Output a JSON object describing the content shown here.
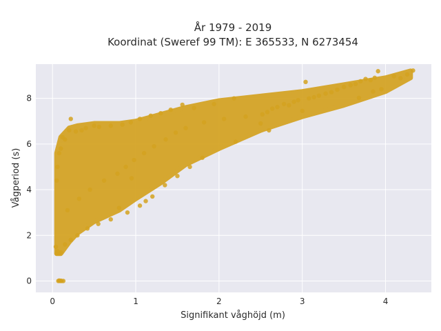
{
  "chart_data": {
    "type": "scatter",
    "title_line1": "År 1979 - 2019",
    "title_line2": "Koordinat (Sweref 99 TM): E 365533, N 6273454",
    "xlabel": "Signifikant våghöjd (m)",
    "ylabel": "Vågperiod (s)",
    "xlim": [
      -0.2,
      4.55
    ],
    "ylim": [
      -0.5,
      9.5
    ],
    "x_ticks": [
      0,
      1,
      2,
      3,
      4
    ],
    "y_ticks": [
      0,
      2,
      4,
      6,
      8
    ],
    "x_tick_labels": [
      "0",
      "1",
      "2",
      "3",
      "4"
    ],
    "y_tick_labels": [
      "0",
      "2",
      "4",
      "6",
      "8"
    ],
    "grid": true,
    "colors": {
      "marker": "#D4A220",
      "plot_bg": "#E8E8F0",
      "grid": "#ffffff"
    },
    "envelope": {
      "upper": [
        [
          0.05,
          5.6
        ],
        [
          0.1,
          6.3
        ],
        [
          0.2,
          6.7
        ],
        [
          0.3,
          6.8
        ],
        [
          0.5,
          6.9
        ],
        [
          0.8,
          6.9
        ],
        [
          1.0,
          7.0
        ],
        [
          1.3,
          7.3
        ],
        [
          1.6,
          7.6
        ],
        [
          2.0,
          7.9
        ],
        [
          2.5,
          8.1
        ],
        [
          3.0,
          8.3
        ],
        [
          3.5,
          8.6
        ],
        [
          4.0,
          8.9
        ],
        [
          4.3,
          9.2
        ]
      ],
      "lower": [
        [
          0.05,
          1.2
        ],
        [
          0.1,
          1.2
        ],
        [
          0.2,
          1.7
        ],
        [
          0.3,
          2.1
        ],
        [
          0.5,
          2.6
        ],
        [
          0.8,
          3.1
        ],
        [
          1.0,
          3.6
        ],
        [
          1.3,
          4.3
        ],
        [
          1.6,
          5.1
        ],
        [
          2.0,
          5.8
        ],
        [
          2.5,
          6.6
        ],
        [
          3.0,
          7.2
        ],
        [
          3.5,
          7.7
        ],
        [
          4.0,
          8.3
        ],
        [
          4.3,
          8.9
        ]
      ]
    },
    "points": [
      [
        4.33,
        9.22
      ],
      [
        4.26,
        9.05
      ],
      [
        4.18,
        8.88
      ],
      [
        4.1,
        8.97
      ],
      [
        3.91,
        9.19
      ],
      [
        3.87,
        8.9
      ],
      [
        3.82,
        8.8
      ],
      [
        3.76,
        8.85
      ],
      [
        3.7,
        8.75
      ],
      [
        3.64,
        8.63
      ],
      [
        3.58,
        8.58
      ],
      [
        3.5,
        8.5
      ],
      [
        3.42,
        8.38
      ],
      [
        3.35,
        8.27
      ],
      [
        3.28,
        8.21
      ],
      [
        3.2,
        8.12
      ],
      [
        3.14,
        8.05
      ],
      [
        3.08,
        8.0
      ],
      [
        3.04,
        8.72
      ],
      [
        2.95,
        7.92
      ],
      [
        2.9,
        7.85
      ],
      [
        2.84,
        7.7
      ],
      [
        2.78,
        7.75
      ],
      [
        2.7,
        7.62
      ],
      [
        2.64,
        7.55
      ],
      [
        2.58,
        7.4
      ],
      [
        2.52,
        7.3
      ],
      [
        3.0,
        7.45
      ],
      [
        2.5,
        6.9
      ],
      [
        2.32,
        7.2
      ],
      [
        3.68,
        8.02
      ],
      [
        3.85,
        8.3
      ],
      [
        3.95,
        8.4
      ],
      [
        2.18,
        8.0
      ],
      [
        2.06,
        7.1
      ],
      [
        1.94,
        7.75
      ],
      [
        1.82,
        6.95
      ],
      [
        1.7,
        7.58
      ],
      [
        1.6,
        6.7
      ],
      [
        1.56,
        7.72
      ],
      [
        1.48,
        6.5
      ],
      [
        1.42,
        7.5
      ],
      [
        1.36,
        6.2
      ],
      [
        1.3,
        7.35
      ],
      [
        1.22,
        5.9
      ],
      [
        1.18,
        7.24
      ],
      [
        1.1,
        5.6
      ],
      [
        1.05,
        7.1
      ],
      [
        0.98,
        5.3
      ],
      [
        0.94,
        6.95
      ],
      [
        0.88,
        5.0
      ],
      [
        0.84,
        6.85
      ],
      [
        0.78,
        4.7
      ],
      [
        0.7,
        6.8
      ],
      [
        0.62,
        4.4
      ],
      [
        0.56,
        6.75
      ],
      [
        0.5,
        6.8
      ],
      [
        0.45,
        4.0
      ],
      [
        0.4,
        6.7
      ],
      [
        0.35,
        6.6
      ],
      [
        0.32,
        3.6
      ],
      [
        0.28,
        6.55
      ],
      [
        0.22,
        7.1
      ],
      [
        0.2,
        6.6
      ],
      [
        0.18,
        3.1
      ],
      [
        0.15,
        6.2
      ],
      [
        0.12,
        6.3
      ],
      [
        0.1,
        5.8
      ],
      [
        0.08,
        5.6
      ],
      [
        0.06,
        5.0
      ],
      [
        0.05,
        4.4
      ],
      [
        0.04,
        1.5
      ],
      [
        0.05,
        1.2
      ],
      [
        0.06,
        1.3
      ],
      [
        0.08,
        1.2
      ],
      [
        0.1,
        1.25
      ],
      [
        0.07,
        0.0
      ],
      [
        0.09,
        0.0
      ],
      [
        0.11,
        0.0
      ],
      [
        0.13,
        0.0
      ],
      [
        0.08,
        0.02
      ],
      [
        0.1,
        0.01
      ],
      [
        1.2,
        3.7
      ],
      [
        1.05,
        3.3
      ],
      [
        0.9,
        3.0
      ],
      [
        0.7,
        2.7
      ],
      [
        0.55,
        2.5
      ],
      [
        0.42,
        2.3
      ],
      [
        0.3,
        2.0
      ],
      [
        0.22,
        1.8
      ],
      [
        0.15,
        1.6
      ],
      [
        1.35,
        4.2
      ],
      [
        1.5,
        4.6
      ],
      [
        1.8,
        5.4
      ],
      [
        2.2,
        6.1
      ],
      [
        2.6,
        6.6
      ],
      [
        1.65,
        5.0
      ],
      [
        0.95,
        4.5
      ],
      [
        1.12,
        3.5
      ],
      [
        0.8,
        3.2
      ]
    ]
  }
}
